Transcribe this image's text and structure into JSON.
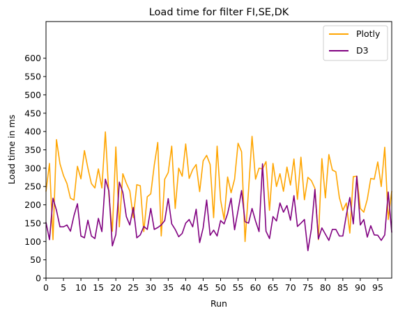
{
  "chart_data": {
    "type": "line",
    "title": "Load time for filter FI,SE,DK",
    "xlabel": "Run",
    "ylabel": "Load time in ms",
    "xlim": [
      0,
      99
    ],
    "ylim": [
      0,
      700
    ],
    "x_ticks": [
      0,
      5,
      10,
      15,
      20,
      25,
      30,
      35,
      40,
      45,
      50,
      55,
      60,
      65,
      70,
      75,
      80,
      85,
      90,
      95
    ],
    "y_ticks": [
      0,
      50,
      100,
      150,
      200,
      250,
      300,
      350,
      400,
      450,
      500,
      550,
      600
    ],
    "grid": false,
    "legend_position": "top-right",
    "series": [
      {
        "name": "Plotly",
        "color": "#FFA500",
        "values": [
          237,
          313,
          105,
          378,
          312,
          280,
          258,
          218,
          213,
          305,
          271,
          348,
          300,
          258,
          246,
          298,
          246,
          399,
          227,
          128,
          358,
          140,
          285,
          259,
          238,
          165,
          255,
          252,
          127,
          222,
          230,
          308,
          370,
          115,
          270,
          288,
          360,
          190,
          300,
          278,
          366,
          272,
          296,
          310,
          236,
          320,
          335,
          310,
          165,
          360,
          213,
          160,
          276,
          233,
          270,
          368,
          345,
          100,
          240,
          387,
          270,
          300,
          298,
          318,
          185,
          313,
          250,
          285,
          237,
          303,
          254,
          325,
          215,
          330,
          214,
          275,
          266,
          245,
          105,
          326,
          219,
          337,
          295,
          290,
          220,
          185,
          205,
          123,
          277,
          278,
          190,
          180,
          215,
          272,
          270,
          317,
          250,
          357,
          160,
          237
        ]
      },
      {
        "name": "D3",
        "color": "#800080",
        "values": [
          152,
          105,
          218,
          185,
          140,
          140,
          145,
          128,
          170,
          203,
          115,
          110,
          158,
          115,
          108,
          163,
          127,
          270,
          238,
          88,
          119,
          262,
          234,
          168,
          145,
          193,
          110,
          118,
          141,
          133,
          190,
          133,
          138,
          145,
          157,
          217,
          148,
          133,
          113,
          122,
          150,
          160,
          140,
          188,
          97,
          137,
          213,
          117,
          131,
          115,
          157,
          148,
          176,
          218,
          132,
          185,
          239,
          154,
          150,
          190,
          156,
          127,
          312,
          128,
          108,
          168,
          156,
          205,
          180,
          198,
          158,
          225,
          141,
          150,
          160,
          75,
          135,
          242,
          107,
          137,
          120,
          103,
          133,
          133,
          115,
          115,
          172,
          220,
          148,
          278,
          145,
          160,
          112,
          143,
          118,
          117,
          103,
          118,
          235,
          125
        ]
      }
    ]
  }
}
